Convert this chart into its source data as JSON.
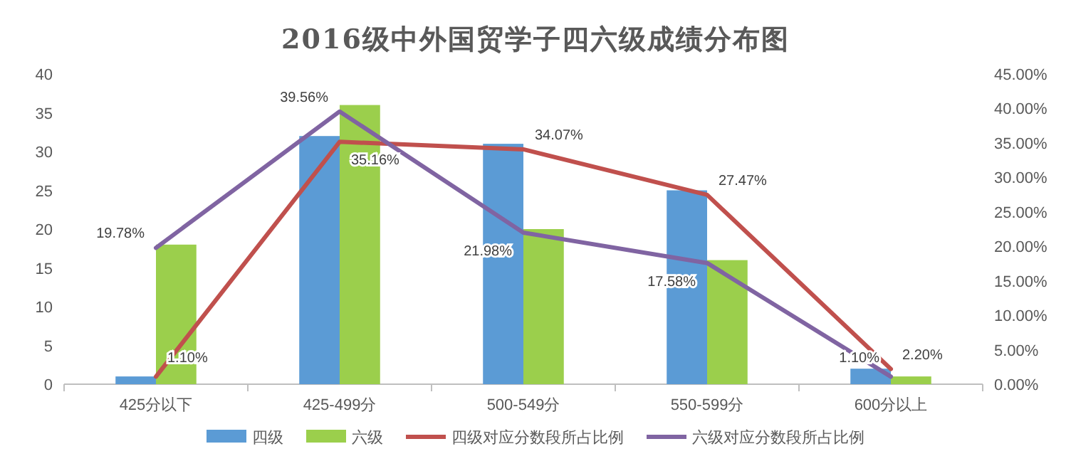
{
  "chart_data": {
    "type": "bar",
    "title": "2016级中外国贸学子四六级成绩分布图",
    "categories": [
      "425分以下",
      "425-499分",
      "500-549分",
      "550-599分",
      "600分以上"
    ],
    "series": [
      {
        "name": "四级",
        "color": "#5b9bd5",
        "values": [
          1,
          32,
          31,
          25,
          2
        ]
      },
      {
        "name": "六级",
        "color": "#9bcf4c",
        "values": [
          18,
          36,
          20,
          16,
          1
        ]
      },
      {
        "name": "四级对应分数段所占比例",
        "type": "line",
        "axis": "y2",
        "color": "#c0504d",
        "values": [
          1.1,
          35.16,
          34.07,
          27.47,
          2.2
        ],
        "value_labels": [
          "1.10%",
          "35.16%",
          "34.07%",
          "27.47%",
          "2.20%"
        ]
      },
      {
        "name": "六级对应分数段所占比例",
        "type": "line",
        "axis": "y2",
        "color": "#8064a2",
        "values": [
          19.78,
          39.56,
          21.98,
          17.58,
          1.1
        ],
        "value_labels": [
          "19.78%",
          "39.56%",
          "21.98%",
          "17.58%",
          "1.10%"
        ]
      }
    ],
    "ylim": [
      0,
      40
    ],
    "yticks": [
      0,
      5,
      10,
      15,
      20,
      25,
      30,
      35,
      40
    ],
    "y2lim": [
      0,
      45
    ],
    "y2ticks": [
      {
        "value": 0,
        "label": "0.00%"
      },
      {
        "value": 5,
        "label": "5.00%"
      },
      {
        "value": 10,
        "label": "10.00%"
      },
      {
        "value": 15,
        "label": "15.00%"
      },
      {
        "value": 20,
        "label": "20.00%"
      },
      {
        "value": 25,
        "label": "25.00%"
      },
      {
        "value": 30,
        "label": "30.00%"
      },
      {
        "value": 35,
        "label": "35.00%"
      },
      {
        "value": 40,
        "label": "40.00%"
      },
      {
        "value": 45,
        "label": "45.00%"
      }
    ],
    "legend": "bottom",
    "marker": "none",
    "line_style": "solid"
  }
}
